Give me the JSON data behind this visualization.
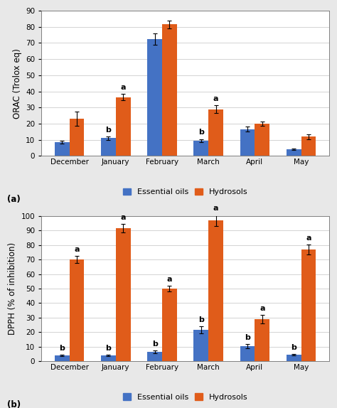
{
  "categories": [
    "December",
    "January",
    "February",
    "March",
    "April",
    "May"
  ],
  "orac": {
    "essential_oils": [
      8.5,
      11.0,
      72.5,
      9.5,
      16.5,
      4.0
    ],
    "hydrosols": [
      23.0,
      36.5,
      81.5,
      29.0,
      20.0,
      12.0
    ],
    "essential_oils_err": [
      1.0,
      1.0,
      3.5,
      1.0,
      1.5,
      0.5
    ],
    "hydrosols_err": [
      4.5,
      2.0,
      2.5,
      2.5,
      1.5,
      1.5
    ],
    "eo_letters": [
      "",
      "b",
      "",
      "b",
      "",
      ""
    ],
    "hyd_letters": [
      "",
      "a",
      "",
      "a",
      "",
      ""
    ],
    "ylabel": "ORAC (Trolox eq)",
    "ylim": [
      0,
      90
    ],
    "yticks": [
      0,
      10,
      20,
      30,
      40,
      50,
      60,
      70,
      80,
      90
    ],
    "panel_label": "(a)"
  },
  "dpph": {
    "essential_oils": [
      4.0,
      4.0,
      6.5,
      21.5,
      10.5,
      4.5
    ],
    "hydrosols": [
      70.0,
      91.5,
      50.0,
      97.0,
      29.0,
      77.0
    ],
    "essential_oils_err": [
      0.5,
      0.5,
      1.0,
      2.5,
      1.5,
      0.5
    ],
    "hydrosols_err": [
      2.5,
      3.0,
      2.0,
      4.0,
      3.0,
      3.5
    ],
    "eo_letters": [
      "b",
      "b",
      "b",
      "b",
      "b",
      "b"
    ],
    "hyd_letters": [
      "a",
      "a",
      "a",
      "a",
      "a",
      "a"
    ],
    "ylabel": "DPPH (% of inhibition)",
    "ylim": [
      0,
      100
    ],
    "yticks": [
      0,
      10,
      20,
      30,
      40,
      50,
      60,
      70,
      80,
      90,
      100
    ],
    "panel_label": "(b)"
  },
  "bar_width": 0.32,
  "color_eo": "#4472C4",
  "color_hyd": "#E05C1A",
  "legend_labels": [
    "Essential oils",
    "Hydrosols"
  ],
  "fig_bg_color": "#E8E8E8",
  "plot_bg": "#FFFFFF",
  "letter_fontsize": 8,
  "axis_fontsize": 8.5,
  "tick_fontsize": 7.5,
  "legend_fontsize": 8
}
